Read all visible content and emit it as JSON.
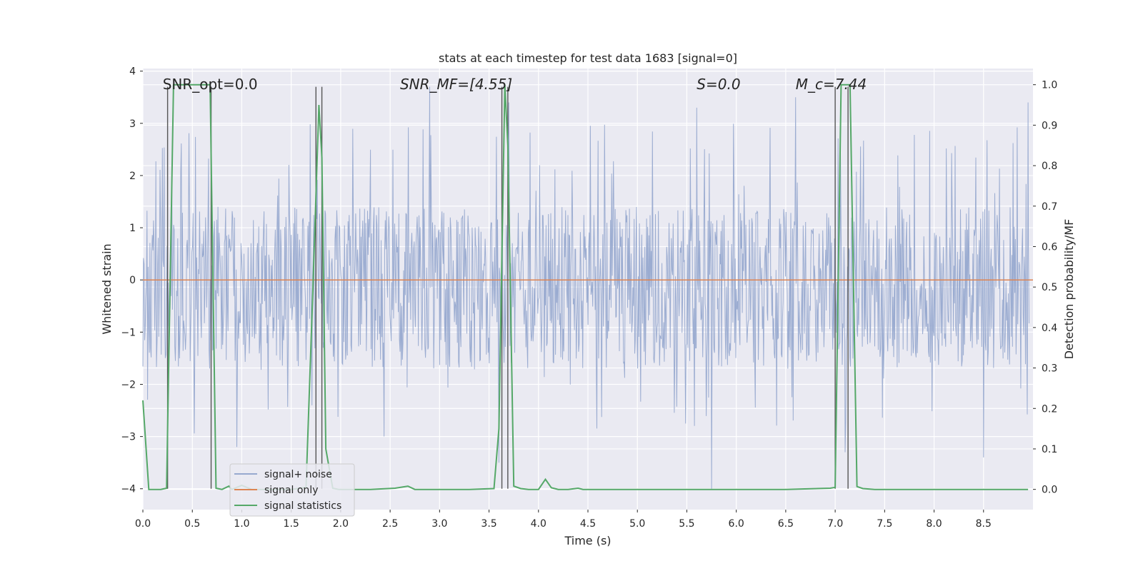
{
  "chart_data": {
    "type": "line",
    "title": "stats at each timestep for test data 1683 [signal=0]",
    "xlabel": "Time (s)",
    "ylabel": "Whitened strain",
    "y2label": "Detection probability/MF",
    "xlim": [
      0.0,
      9.0
    ],
    "ylim": [
      -4.4,
      4.05
    ],
    "y2lim": [
      -0.05,
      1.04
    ],
    "xticks": [
      0.0,
      0.5,
      1.0,
      1.5,
      2.0,
      2.5,
      3.0,
      3.5,
      4.0,
      4.5,
      5.0,
      5.5,
      6.0,
      6.5,
      7.0,
      7.5,
      8.0,
      8.5
    ],
    "yticks": [
      4,
      3,
      2,
      1,
      0,
      -1,
      -2,
      -3,
      -4
    ],
    "y2ticks": [
      1.0,
      0.9,
      0.8,
      0.7,
      0.6,
      0.5,
      0.4,
      0.3,
      0.2,
      0.1,
      0.0
    ],
    "grid": true,
    "legend_position": "lower-left",
    "annotations": [
      {
        "text": "SNR_opt=0.0",
        "x": 0.2,
        "y": 3.75,
        "italic": false
      },
      {
        "text": "SNR_MF=[4.55]",
        "x": 2.6,
        "y": 3.75,
        "italic": true
      },
      {
        "text": "S=0.0",
        "x": 5.6,
        "y": 3.75,
        "italic": true
      },
      {
        "text": "M_c=7.44",
        "x": 6.6,
        "y": 3.75,
        "italic": true
      }
    ],
    "series": [
      {
        "name": "signal+ noise",
        "color": "#97a9cf",
        "axis": "left",
        "note": "whitened noise, approx. uniform band between -1.7 and 1.4 with spikes up to about +/-3.7",
        "band": [
          -1.7,
          1.4
        ],
        "peak_x": [
          0.25,
          0.95,
          1.75,
          2.9,
          3.6,
          3.7,
          5.6,
          5.75,
          6.6,
          7.1,
          8.5,
          8.95
        ],
        "peak_y": [
          -2.6,
          -3.2,
          3.1,
          3.7,
          -3.5,
          3.4,
          3.3,
          -4.0,
          3.5,
          -3.3,
          -3.4,
          3.4
        ]
      },
      {
        "name": "signal only",
        "color": "#dd8452",
        "axis": "left",
        "x": [
          0.0,
          9.0
        ],
        "y": [
          0.0,
          0.0
        ]
      },
      {
        "name": "signal statistics",
        "color": "#55a868",
        "axis": "right",
        "x": [
          0.0,
          0.06,
          0.1,
          0.18,
          0.24,
          0.31,
          0.38,
          0.45,
          0.52,
          0.6,
          0.68,
          0.74,
          0.8,
          0.87,
          0.9,
          1.0,
          1.1,
          1.3,
          1.5,
          1.65,
          1.72,
          1.78,
          1.81,
          1.85,
          1.92,
          1.98,
          2.1,
          2.3,
          2.55,
          2.68,
          2.75,
          3.0,
          3.3,
          3.55,
          3.6,
          3.66,
          3.69,
          3.75,
          3.82,
          3.9,
          4.0,
          4.07,
          4.13,
          4.2,
          4.3,
          4.4,
          4.45,
          4.5,
          5.0,
          5.5,
          6.0,
          6.5,
          6.95,
          7.0,
          7.06,
          7.1,
          7.15,
          7.22,
          7.28,
          7.4,
          7.6,
          8.0,
          8.5,
          8.95
        ],
        "y": [
          0.22,
          0.0,
          0.0,
          0.0,
          0.003,
          1.0,
          1.0,
          1.0,
          1.0,
          1.0,
          1.0,
          0.003,
          0.0,
          0.008,
          0.0,
          0.01,
          0.0,
          0.0,
          0.0,
          0.005,
          0.5,
          0.95,
          0.82,
          0.1,
          0.003,
          0.0,
          0.0,
          0.0,
          0.003,
          0.008,
          0.0,
          0.0,
          0.0,
          0.002,
          0.15,
          1.0,
          0.85,
          0.008,
          0.002,
          0.0,
          0.0,
          0.025,
          0.004,
          0.0,
          0.0,
          0.003,
          0.0,
          0.0,
          0.0,
          0.0,
          0.0,
          0.0,
          0.003,
          0.005,
          1.0,
          1.0,
          1.0,
          0.007,
          0.002,
          0.0,
          0.0,
          0.0,
          0.0,
          0.0
        ]
      }
    ],
    "vertical_markers": {
      "color": "#555555",
      "x": [
        0.25,
        0.69,
        1.75,
        1.81,
        3.63,
        3.69,
        7.0,
        7.13
      ],
      "y_range": [
        -4.0,
        3.7
      ]
    },
    "legend": [
      "signal+ noise",
      "signal only",
      "signal statistics"
    ]
  }
}
